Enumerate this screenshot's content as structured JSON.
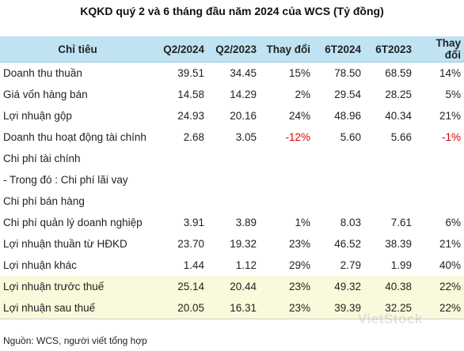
{
  "title": "KQKD quý 2 và 6 tháng đầu năm 2024 của WCS (Tỷ đồng)",
  "table": {
    "headers": [
      "Chỉ tiêu",
      "Q2/2024",
      "Q2/2023",
      "Thay đổi",
      "6T2024",
      "6T2023",
      "Thay đổi"
    ],
    "rows": [
      {
        "cells": [
          "Doanh thu thuần",
          "39.51",
          "34.45",
          "15%",
          "78.50",
          "68.59",
          "14%"
        ],
        "highlight": false,
        "negative": []
      },
      {
        "cells": [
          "Giá vốn hàng bán",
          "14.58",
          "14.29",
          "2%",
          "29.54",
          "28.25",
          "5%"
        ],
        "highlight": false,
        "negative": []
      },
      {
        "cells": [
          "Lợi nhuận gộp",
          "24.93",
          "20.16",
          "24%",
          "48.96",
          "40.34",
          "21%"
        ],
        "highlight": false,
        "negative": []
      },
      {
        "cells": [
          "Doanh thu hoạt động tài chính",
          "2.68",
          "3.05",
          "-12%",
          "5.60",
          "5.66",
          "-1%"
        ],
        "highlight": false,
        "negative": [
          3,
          6
        ]
      },
      {
        "cells": [
          "Chi phí tài chính",
          "",
          "",
          "",
          "",
          "",
          ""
        ],
        "highlight": false,
        "negative": []
      },
      {
        "cells": [
          "- Trong đó : Chi phí lãi vay",
          "",
          "",
          "",
          "",
          "",
          ""
        ],
        "highlight": false,
        "negative": []
      },
      {
        "cells": [
          "Chi phí bán hàng",
          "",
          "",
          "",
          "",
          "",
          ""
        ],
        "highlight": false,
        "negative": []
      },
      {
        "cells": [
          "Chi phí quản lý doanh nghiệp",
          "3.91",
          "3.89",
          "1%",
          "8.03",
          "7.61",
          "6%"
        ],
        "highlight": false,
        "negative": []
      },
      {
        "cells": [
          "Lợi nhuận thuần từ HĐKD",
          "23.70",
          "19.32",
          "23%",
          "46.52",
          "38.39",
          "21%"
        ],
        "highlight": false,
        "negative": []
      },
      {
        "cells": [
          "Lợi nhuận khác",
          "1.44",
          "1.12",
          "29%",
          "2.79",
          "1.99",
          "40%"
        ],
        "highlight": false,
        "negative": []
      },
      {
        "cells": [
          "Lợi nhuận trước thuế",
          "25.14",
          "20.44",
          "23%",
          "49.32",
          "40.38",
          "22%"
        ],
        "highlight": true,
        "negative": []
      },
      {
        "cells": [
          "Lợi nhuận sau thuế",
          "20.05",
          "16.31",
          "23%",
          "39.39",
          "32.25",
          "22%"
        ],
        "highlight": true,
        "negative": []
      }
    ]
  },
  "source": "Nguồn: WCS, người viết tổng hợp",
  "watermark": "VietStock",
  "colors": {
    "header_bg": "#bfe3f2",
    "highlight_bg": "#f9f9dc",
    "negative": "#e00000"
  }
}
